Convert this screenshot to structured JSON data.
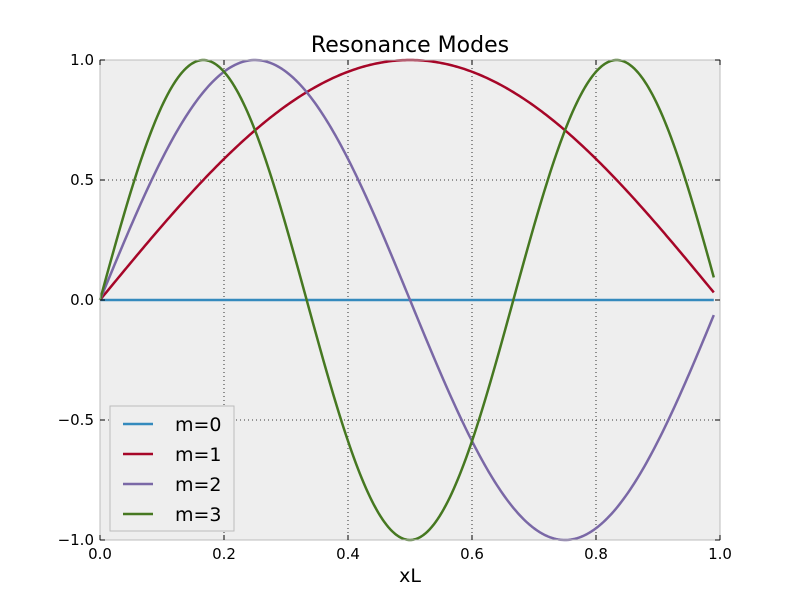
{
  "chart_data": {
    "type": "line",
    "title": "Resonance Modes",
    "xlabel": "xL",
    "ylabel": "",
    "xlim": [
      0.0,
      1.0
    ],
    "ylim": [
      -1.0,
      1.0
    ],
    "x_ticks": [
      "0.0",
      "0.2",
      "0.4",
      "0.6",
      "0.8",
      "1.0"
    ],
    "y_ticks": [
      "−1.0",
      "−0.5",
      "0.0",
      "0.5",
      "1.0"
    ],
    "grid": true,
    "background": "#eeeeee",
    "legend_position": "lower-left",
    "x_end": 0.99,
    "series": [
      {
        "name": "m=0",
        "formula": "sin(0*pi*x)",
        "color": "#348abd"
      },
      {
        "name": "m=1",
        "formula": "sin(1*pi*x)",
        "color": "#a60628"
      },
      {
        "name": "m=2",
        "formula": "sin(2*pi*x)",
        "color": "#7a68a6"
      },
      {
        "name": "m=3",
        "formula": "sin(3*pi*x)",
        "color": "#467821"
      }
    ]
  }
}
